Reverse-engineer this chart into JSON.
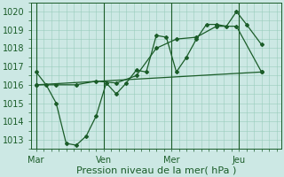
{
  "background_color": "#cce8e4",
  "line_color": "#1a5c28",
  "grid_color": "#99ccbb",
  "xlabel": "Pression niveau de la mer( hPa )",
  "xlabel_fontsize": 8,
  "tick_fontsize": 7,
  "ylim": [
    1012.5,
    1020.5
  ],
  "yticks": [
    1013,
    1014,
    1015,
    1016,
    1017,
    1018,
    1019,
    1020
  ],
  "xtick_labels": [
    "Mar",
    "Ven",
    "Mer",
    "Jeu"
  ],
  "xtick_positions": [
    0,
    27,
    54,
    81
  ],
  "xmax": 96,
  "line1_x": [
    0,
    4,
    8,
    12,
    16,
    20,
    24,
    28,
    32,
    36,
    40,
    44,
    48,
    52,
    56,
    60,
    64,
    68,
    72,
    76,
    80,
    84,
    90
  ],
  "line1_y": [
    1016.7,
    1016.0,
    1015.0,
    1012.8,
    1012.7,
    1013.2,
    1014.3,
    1016.1,
    1015.5,
    1016.1,
    1016.8,
    1016.7,
    1018.7,
    1018.6,
    1016.7,
    1017.5,
    1018.5,
    1019.3,
    1019.3,
    1019.2,
    1020.0,
    1019.3,
    1018.2
  ],
  "line2_x": [
    0,
    8,
    16,
    24,
    32,
    40,
    48,
    56,
    64,
    72,
    80,
    90
  ],
  "line2_y": [
    1016.0,
    1016.0,
    1016.0,
    1016.2,
    1016.1,
    1016.5,
    1018.0,
    1018.5,
    1018.6,
    1019.2,
    1019.2,
    1016.7
  ],
  "line3_x": [
    0,
    90
  ],
  "line3_y": [
    1016.0,
    1016.7
  ],
  "vline_positions": [
    0,
    27,
    54,
    81
  ],
  "marker": "D",
  "markersize": 2.0,
  "linewidth": 0.9
}
